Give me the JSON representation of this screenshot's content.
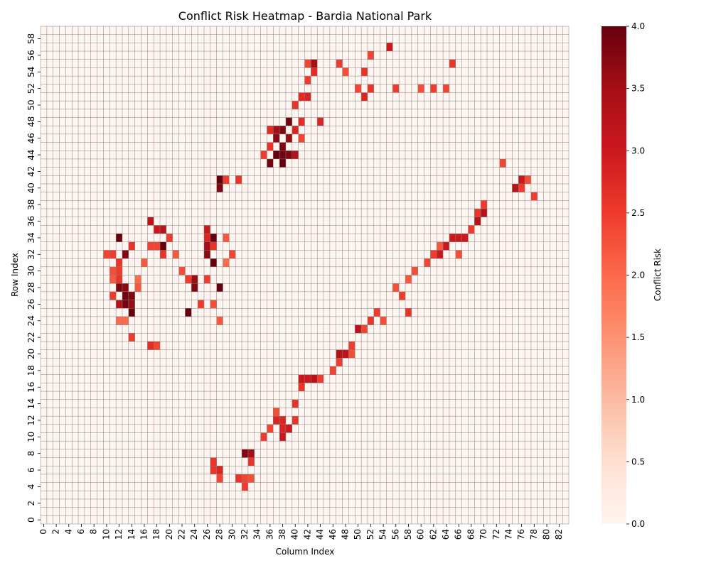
{
  "chart_data": {
    "type": "heatmap",
    "title": "Conflict Risk Heatmap - Bardia National Park",
    "xlabel": "Column Index",
    "ylabel": "Row Index",
    "colorbar_label": "Conflict Risk",
    "n_cols": 84,
    "n_rows": 60,
    "vmin": 0.0,
    "vmax": 4.0,
    "colormap": [
      "#fff5f0",
      "#fee0d2",
      "#fcbba1",
      "#fc9272",
      "#fb6a4a",
      "#ef3b2c",
      "#cb181d",
      "#a50f15",
      "#67000d"
    ],
    "grid_color": "#808080",
    "x_tick_labels": [
      "0",
      "2",
      "4",
      "6",
      "8",
      "10",
      "12",
      "14",
      "16",
      "18",
      "20",
      "22",
      "24",
      "26",
      "28",
      "30",
      "32",
      "34",
      "36",
      "38",
      "40",
      "42",
      "44",
      "46",
      "48",
      "50",
      "52",
      "54",
      "56",
      "58",
      "60",
      "62",
      "64",
      "66",
      "68",
      "70",
      "72",
      "74",
      "76",
      "78",
      "80",
      "82"
    ],
    "y_tick_labels": [
      "0",
      "2",
      "4",
      "6",
      "8",
      "10",
      "12",
      "14",
      "16",
      "18",
      "20",
      "22",
      "24",
      "26",
      "28",
      "30",
      "32",
      "34",
      "36",
      "38",
      "40",
      "42",
      "44",
      "46",
      "48",
      "50",
      "52",
      "54",
      "56",
      "58"
    ],
    "colorbar_ticks": [
      "0.0",
      "0.5",
      "1.0",
      "1.5",
      "2.0",
      "2.5",
      "3.0",
      "3.5",
      "4.0"
    ],
    "high_risk_cells": [
      [
        12,
        34,
        4.0
      ],
      [
        12,
        28,
        3.8
      ],
      [
        13,
        27,
        3.9
      ],
      [
        13,
        26,
        3.9
      ],
      [
        14,
        27,
        3.8
      ],
      [
        14,
        25,
        4.0
      ],
      [
        13,
        32,
        3.8
      ],
      [
        14,
        26,
        3.6
      ],
      [
        12,
        26,
        3.3
      ],
      [
        13,
        28,
        3.7
      ],
      [
        19,
        33,
        4.0
      ],
      [
        27,
        34,
        4.0
      ],
      [
        27,
        31,
        4.0
      ],
      [
        26,
        32,
        3.7
      ],
      [
        26,
        33,
        3.5
      ],
      [
        24,
        28,
        3.8
      ],
      [
        24,
        29,
        3.6
      ],
      [
        23,
        25,
        4.0
      ],
      [
        28,
        28,
        4.0
      ],
      [
        28,
        41,
        4.0
      ],
      [
        28,
        40,
        3.8
      ],
      [
        17,
        36,
        3.2
      ],
      [
        18,
        35,
        3.0
      ],
      [
        19,
        35,
        3.3
      ],
      [
        26,
        35,
        3.0
      ],
      [
        37,
        44,
        4.0
      ],
      [
        38,
        43,
        4.0
      ],
      [
        38,
        44,
        3.9
      ],
      [
        39,
        44,
        3.8
      ],
      [
        38,
        45,
        3.8
      ],
      [
        39,
        46,
        3.6
      ],
      [
        38,
        47,
        3.8
      ],
      [
        39,
        48,
        3.9
      ],
      [
        36,
        43,
        3.9
      ],
      [
        37,
        46,
        3.7
      ],
      [
        37,
        47,
        3.5
      ],
      [
        40,
        44,
        3.3
      ],
      [
        43,
        55,
        3.5
      ],
      [
        32,
        8,
        3.8
      ],
      [
        33,
        8,
        3.5
      ],
      [
        47,
        20,
        3.3
      ],
      [
        48,
        20,
        3.2
      ],
      [
        50,
        23,
        3.2
      ],
      [
        41,
        17,
        3.0
      ],
      [
        43,
        17,
        3.3
      ],
      [
        42,
        17,
        3.0
      ],
      [
        69,
        36,
        3.3
      ],
      [
        70,
        37,
        3.3
      ],
      [
        75,
        40,
        3.3
      ],
      [
        76,
        41,
        3.0
      ],
      [
        65,
        34,
        3.0
      ],
      [
        66,
        34,
        3.0
      ],
      [
        67,
        34,
        3.0
      ],
      [
        64,
        33,
        3.0
      ],
      [
        63,
        32,
        3.0
      ],
      [
        38,
        10,
        3.0
      ],
      [
        39,
        11,
        3.0
      ],
      [
        38,
        11,
        2.8
      ],
      [
        37,
        12,
        2.8
      ],
      [
        38,
        12,
        2.8
      ],
      [
        28,
        6,
        2.8
      ],
      [
        27,
        6,
        2.6
      ],
      [
        32,
        4,
        2.5
      ],
      [
        31,
        5,
        2.6
      ]
    ],
    "medium_risk_cells": [
      [
        11,
        32,
        2.5
      ],
      [
        10,
        32,
        2.4
      ],
      [
        11,
        30,
        2.3
      ],
      [
        11,
        29,
        2.2
      ],
      [
        12,
        30,
        2.5
      ],
      [
        12,
        29,
        2.6
      ],
      [
        14,
        33,
        2.6
      ],
      [
        15,
        29,
        2.0
      ],
      [
        15,
        28,
        2.2
      ],
      [
        14,
        22,
        2.5
      ],
      [
        11,
        27,
        2.5
      ],
      [
        12,
        24,
        2.0
      ],
      [
        13,
        24,
        2.0
      ],
      [
        12,
        31,
        2.6
      ],
      [
        18,
        33,
        2.4
      ],
      [
        19,
        32,
        2.6
      ],
      [
        20,
        34,
        2.5
      ],
      [
        17,
        33,
        2.4
      ],
      [
        16,
        31,
        2.2
      ],
      [
        21,
        32,
        2.2
      ],
      [
        22,
        30,
        2.3
      ],
      [
        23,
        29,
        2.5
      ],
      [
        25,
        26,
        2.5
      ],
      [
        26,
        29,
        2.5
      ],
      [
        27,
        26,
        2.3
      ],
      [
        28,
        24,
        2.2
      ],
      [
        29,
        31,
        2.0
      ],
      [
        29,
        34,
        2.2
      ],
      [
        30,
        32,
        2.4
      ],
      [
        27,
        33,
        2.6
      ],
      [
        26,
        34,
        2.8
      ],
      [
        17,
        21,
        2.7
      ],
      [
        18,
        21,
        2.4
      ],
      [
        35,
        44,
        2.5
      ],
      [
        36,
        45,
        2.6
      ],
      [
        36,
        47,
        2.7
      ],
      [
        40,
        47,
        2.8
      ],
      [
        41,
        48,
        2.7
      ],
      [
        41,
        46,
        2.4
      ],
      [
        40,
        50,
        2.6
      ],
      [
        41,
        51,
        2.7
      ],
      [
        42,
        51,
        2.8
      ],
      [
        42,
        53,
        2.5
      ],
      [
        43,
        54,
        2.7
      ],
      [
        42,
        55,
        2.4
      ],
      [
        44,
        48,
        2.8
      ],
      [
        47,
        55,
        2.5
      ],
      [
        48,
        54,
        2.3
      ],
      [
        51,
        54,
        2.6
      ],
      [
        52,
        56,
        2.4
      ],
      [
        52,
        52,
        2.6
      ],
      [
        50,
        52,
        2.4
      ],
      [
        51,
        51,
        2.8
      ],
      [
        55,
        57,
        3.0
      ],
      [
        56,
        52,
        2.5
      ],
      [
        60,
        52,
        2.3
      ],
      [
        62,
        52,
        2.5
      ],
      [
        64,
        52,
        2.4
      ],
      [
        65,
        55,
        2.6
      ],
      [
        40,
        14,
        2.6
      ],
      [
        41,
        16,
        2.6
      ],
      [
        44,
        17,
        2.5
      ],
      [
        46,
        18,
        2.4
      ],
      [
        47,
        19,
        2.5
      ],
      [
        49,
        21,
        2.5
      ],
      [
        49,
        20,
        2.3
      ],
      [
        51,
        23,
        2.4
      ],
      [
        52,
        24,
        2.6
      ],
      [
        53,
        25,
        2.5
      ],
      [
        54,
        24,
        2.3
      ],
      [
        56,
        28,
        2.3
      ],
      [
        57,
        27,
        2.5
      ],
      [
        58,
        25,
        2.6
      ],
      [
        58,
        29,
        2.2
      ],
      [
        59,
        30,
        2.3
      ],
      [
        61,
        31,
        2.4
      ],
      [
        62,
        32,
        2.5
      ],
      [
        63,
        33,
        2.2
      ],
      [
        66,
        32,
        2.3
      ],
      [
        68,
        35,
        2.5
      ],
      [
        69,
        37,
        2.6
      ],
      [
        70,
        38,
        2.5
      ],
      [
        73,
        43,
        2.4
      ],
      [
        76,
        40,
        2.5
      ],
      [
        77,
        41,
        2.3
      ],
      [
        78,
        39,
        2.5
      ],
      [
        35,
        10,
        2.5
      ],
      [
        36,
        11,
        2.4
      ],
      [
        37,
        13,
        2.3
      ],
      [
        40,
        12,
        2.6
      ],
      [
        27,
        7,
        2.6
      ],
      [
        28,
        5,
        2.4
      ],
      [
        33,
        7,
        2.6
      ],
      [
        32,
        5,
        2.4
      ],
      [
        33,
        5,
        2.3
      ],
      [
        29,
        41,
        2.5
      ],
      [
        31,
        41,
        2.6
      ]
    ]
  }
}
